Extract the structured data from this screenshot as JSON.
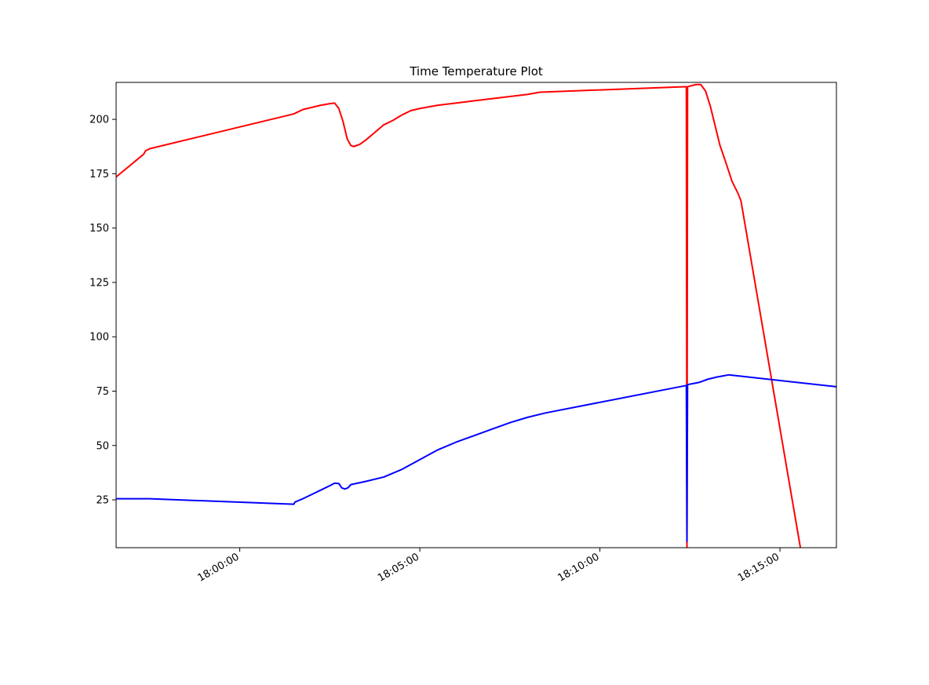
{
  "chart_data": {
    "type": "line",
    "title": "Time Temperature Plot",
    "xlabel": "",
    "ylabel": "",
    "x_axis_type": "time",
    "xlim": [
      "17:56:34",
      "18:16:34"
    ],
    "ylim": [
      3,
      217
    ],
    "x_ticks": [
      "18:00:00",
      "18:05:00",
      "18:10:00",
      "18:15:00"
    ],
    "y_ticks": [
      25,
      50,
      75,
      100,
      125,
      150,
      175,
      200
    ],
    "grid": false,
    "legend": "none",
    "series": [
      {
        "color": "#ff0000",
        "points": [
          [
            "17:56:34",
            173.5
          ],
          [
            "17:57:20",
            184
          ],
          [
            "17:57:23",
            185.5
          ],
          [
            "17:57:30",
            186.5
          ],
          [
            "18:01:30",
            202.5
          ],
          [
            "18:01:45",
            204.5
          ],
          [
            "18:02:00",
            205.5
          ],
          [
            "18:02:15",
            206.5
          ],
          [
            "18:02:30",
            207.2
          ],
          [
            "18:02:38",
            207.5
          ],
          [
            "18:02:45",
            205
          ],
          [
            "18:02:52",
            199
          ],
          [
            "18:02:59",
            191
          ],
          [
            "18:03:05",
            188
          ],
          [
            "18:03:10",
            187.5
          ],
          [
            "18:03:20",
            188.5
          ],
          [
            "18:03:30",
            190.5
          ],
          [
            "18:03:45",
            194
          ],
          [
            "18:04:00",
            197.5
          ],
          [
            "18:04:15",
            199.5
          ],
          [
            "18:04:30",
            202
          ],
          [
            "18:04:45",
            204
          ],
          [
            "18:05:00",
            205
          ],
          [
            "18:05:30",
            206.5
          ],
          [
            "18:06:00",
            207.5
          ],
          [
            "18:06:30",
            208.5
          ],
          [
            "18:07:00",
            209.5
          ],
          [
            "18:07:30",
            210.5
          ],
          [
            "18:08:00",
            211.5
          ],
          [
            "18:08:20",
            212.5
          ],
          [
            "18:12:22",
            215
          ],
          [
            "18:12:24",
            215
          ],
          [
            "18:12:25",
            0
          ],
          [
            "18:12:26",
            215
          ],
          [
            "18:12:40",
            216
          ],
          [
            "18:12:48",
            216
          ],
          [
            "18:12:56",
            213
          ],
          [
            "18:13:04",
            206
          ],
          [
            "18:13:12",
            197
          ],
          [
            "18:13:20",
            188
          ],
          [
            "18:13:30",
            180
          ],
          [
            "18:13:40",
            171.5
          ],
          [
            "18:13:50",
            166
          ],
          [
            "18:13:55",
            162.5
          ],
          [
            "18:15:34",
            3
          ]
        ]
      },
      {
        "color": "#0000ff",
        "points": [
          [
            "17:56:34",
            25.5
          ],
          [
            "17:57:20",
            25.5
          ],
          [
            "17:57:30",
            25.5
          ],
          [
            "18:01:30",
            23
          ],
          [
            "18:01:32",
            24
          ],
          [
            "18:01:45",
            25.5
          ],
          [
            "18:02:00",
            27.5
          ],
          [
            "18:02:15",
            29.5
          ],
          [
            "18:02:30",
            31.5
          ],
          [
            "18:02:38",
            32.7
          ],
          [
            "18:02:45",
            32.5
          ],
          [
            "18:02:50",
            30.5
          ],
          [
            "18:02:55",
            30
          ],
          [
            "18:03:00",
            30.5
          ],
          [
            "18:03:05",
            32
          ],
          [
            "18:03:30",
            33.5
          ],
          [
            "18:04:00",
            35.5
          ],
          [
            "18:04:30",
            39
          ],
          [
            "18:05:00",
            43.5
          ],
          [
            "18:05:30",
            48
          ],
          [
            "18:06:00",
            51.5
          ],
          [
            "18:06:30",
            54.5
          ],
          [
            "18:07:00",
            57.5
          ],
          [
            "18:07:30",
            60.5
          ],
          [
            "18:08:00",
            63
          ],
          [
            "18:08:30",
            65
          ],
          [
            "18:12:22",
            77.5
          ],
          [
            "18:12:24",
            77.5
          ],
          [
            "18:12:25",
            6
          ],
          [
            "18:12:26",
            78
          ],
          [
            "18:12:45",
            79
          ],
          [
            "18:13:00",
            80.5
          ],
          [
            "18:13:15",
            81.5
          ],
          [
            "18:13:25",
            82
          ],
          [
            "18:13:35",
            82.5
          ],
          [
            "18:16:34",
            77
          ]
        ]
      }
    ]
  }
}
